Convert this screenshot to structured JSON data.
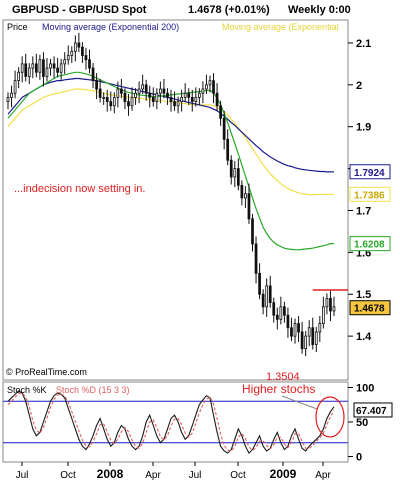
{
  "header": {
    "symbol": "GBPUSD - GBP/USD Spot",
    "price_change": "1.4678 (+0.01%)",
    "timeframe": "Weekly 0:00"
  },
  "main_panel": {
    "price_label": "Price",
    "ma200_legend": "Moving average (Exponential 200)",
    "ma_legend_2": "Moving average (Exponential",
    "annotation": "...indecision now setting in.",
    "low_label": "1.3504",
    "copyright": "© ProRealTime.com"
  },
  "stoch_panel": {
    "legend_k": "Stoch %K",
    "legend_d": "Stoch %D (15 3 3)",
    "annotation": "Higher stochs"
  },
  "colors": {
    "ma200": "#1a1a8c",
    "ma_yellow": "#f2e04a",
    "ma_green": "#2aa82a",
    "candle": "#111111",
    "resistance": "#e02020",
    "annotation_red": "#e02020",
    "current_box": "#f5c542",
    "stoch_k": "#1a1a1a",
    "stoch_d": "#e06060",
    "stoch_band": "#1a1acc"
  },
  "chart_data": [
    {
      "type": "candlestick",
      "title": "GBPUSD - GBP/USD Spot",
      "ylim": [
        1.3,
        2.15
      ],
      "yticks": [
        1.4,
        1.5,
        1.6,
        1.7,
        1.8,
        1.9,
        2.0,
        2.1
      ],
      "ytick_labels": [
        "1.4",
        "1.5",
        "1.6",
        "1.7",
        "1.8",
        "1.9",
        "2",
        "2.1"
      ],
      "xtick_labels": [
        "Jul",
        "Oct",
        "2008",
        "Apr",
        "Jul",
        "Oct",
        "2009",
        "Apr"
      ],
      "last_values": [
        {
          "name": "MA 200",
          "value": 1.7924
        },
        {
          "name": "MA yellow",
          "value": 1.7386
        },
        {
          "name": "MA green",
          "value": 1.6208
        },
        {
          "name": "Price",
          "value": 1.4678
        }
      ],
      "resistance_level": 1.51,
      "low": 1.3504,
      "close_series": [
        1.97,
        1.98,
        2.01,
        2.03,
        2.05,
        2.02,
        2.04,
        2.05,
        2.03,
        2.06,
        2.02,
        2.04,
        2.05,
        2.04,
        2.03,
        2.05,
        2.06,
        2.07,
        2.08,
        2.1,
        2.09,
        2.07,
        2.06,
        2.04,
        2.01,
        1.99,
        1.97,
        1.97,
        1.96,
        1.95,
        1.97,
        1.99,
        1.98,
        1.96,
        1.95,
        1.97,
        1.98,
        1.99,
        2.0,
        1.98,
        1.97,
        1.96,
        1.98,
        1.99,
        1.98,
        1.97,
        1.96,
        1.95,
        1.96,
        1.97,
        1.98,
        1.97,
        1.96,
        1.97,
        1.98,
        1.99,
        2.0,
        2.01,
        1.98,
        1.95,
        1.92,
        1.87,
        1.82,
        1.78,
        1.8,
        1.76,
        1.73,
        1.74,
        1.68,
        1.62,
        1.55,
        1.5,
        1.47,
        1.52,
        1.48,
        1.45,
        1.44,
        1.47,
        1.45,
        1.42,
        1.4,
        1.43,
        1.41,
        1.37,
        1.4,
        1.42,
        1.38,
        1.41,
        1.43,
        1.47,
        1.49,
        1.46,
        1.47
      ],
      "ma200_series": [
        1.93,
        1.94,
        1.95,
        1.96,
        1.97,
        1.975,
        1.98,
        1.985,
        1.99,
        1.995,
        2.0,
        2.003,
        2.006,
        2.008,
        2.01,
        2.01,
        2.012,
        2.013,
        2.014,
        2.015,
        2.015,
        2.014,
        2.013,
        2.012,
        2.011,
        2.01,
        2.008,
        2.006,
        2.004,
        2.002,
        2.0,
        1.998,
        1.996,
        1.994,
        1.992,
        1.99,
        1.988,
        1.986,
        1.984,
        1.982,
        1.98,
        1.978,
        1.976,
        1.974,
        1.972,
        1.97,
        1.968,
        1.966,
        1.964,
        1.962,
        1.96,
        1.958,
        1.956,
        1.954,
        1.952,
        1.95,
        1.948,
        1.946,
        1.942,
        1.938,
        1.932,
        1.925,
        1.918,
        1.91,
        1.903,
        1.895,
        1.887,
        1.879,
        1.871,
        1.863,
        1.855,
        1.848,
        1.84,
        1.834,
        1.828,
        1.823,
        1.818,
        1.814,
        1.81,
        1.807,
        1.805,
        1.802,
        1.8,
        1.798,
        1.797,
        1.796,
        1.795,
        1.794,
        1.793,
        1.793,
        1.792,
        1.792,
        1.7924
      ],
      "ma_yellow_series": [
        1.9,
        1.91,
        1.92,
        1.93,
        1.94,
        1.945,
        1.95,
        1.955,
        1.96,
        1.965,
        1.97,
        1.973,
        1.976,
        1.978,
        1.98,
        1.982,
        1.984,
        1.986,
        1.988,
        1.99,
        1.99,
        1.989,
        1.988,
        1.987,
        1.986,
        1.984,
        1.982,
        1.98,
        1.978,
        1.976,
        1.975,
        1.974,
        1.973,
        1.972,
        1.971,
        1.97,
        1.969,
        1.968,
        1.967,
        1.966,
        1.965,
        1.964,
        1.963,
        1.962,
        1.961,
        1.96,
        1.959,
        1.958,
        1.957,
        1.956,
        1.955,
        1.954,
        1.953,
        1.952,
        1.952,
        1.952,
        1.952,
        1.952,
        1.95,
        1.948,
        1.943,
        1.936,
        1.928,
        1.918,
        1.908,
        1.897,
        1.886,
        1.874,
        1.861,
        1.848,
        1.835,
        1.822,
        1.809,
        1.798,
        1.788,
        1.779,
        1.771,
        1.764,
        1.758,
        1.752,
        1.748,
        1.745,
        1.742,
        1.74,
        1.739,
        1.738,
        1.738,
        1.738,
        1.7386,
        1.7386,
        1.7386,
        1.7386,
        1.7386
      ],
      "ma_green_series": [
        1.92,
        1.93,
        1.94,
        1.95,
        1.96,
        1.97,
        1.98,
        1.985,
        1.99,
        1.995,
        2.0,
        2.005,
        2.01,
        2.015,
        2.02,
        2.022,
        2.024,
        2.026,
        2.028,
        2.03,
        2.03,
        2.028,
        2.026,
        2.024,
        2.02,
        2.016,
        2.012,
        2.008,
        2.004,
        2.0,
        1.996,
        1.992,
        1.988,
        1.985,
        1.982,
        1.98,
        1.978,
        1.976,
        1.975,
        1.974,
        1.973,
        1.972,
        1.972,
        1.973,
        1.974,
        1.975,
        1.976,
        1.977,
        1.978,
        1.979,
        1.98,
        1.981,
        1.982,
        1.983,
        1.984,
        1.985,
        1.986,
        1.987,
        1.98,
        1.968,
        1.952,
        1.932,
        1.91,
        1.885,
        1.86,
        1.835,
        1.808,
        1.782,
        1.756,
        1.73,
        1.705,
        1.682,
        1.66,
        1.645,
        1.633,
        1.624,
        1.618,
        1.614,
        1.61,
        1.608,
        1.607,
        1.606,
        1.606,
        1.607,
        1.608,
        1.609,
        1.61,
        1.612,
        1.614,
        1.616,
        1.618,
        1.6208,
        1.6208
      ]
    },
    {
      "type": "line",
      "title": "Stoch %K Stoch %D (15 3 3)",
      "ylim": [
        -5,
        105
      ],
      "yticks": [
        0,
        50,
        100
      ],
      "ytick_labels": [
        "0",
        "50",
        "100"
      ],
      "bands": [
        80,
        20
      ],
      "last_value": 67.407,
      "last_label": "67.407",
      "k_series": [
        80,
        85,
        90,
        95,
        92,
        80,
        60,
        40,
        30,
        35,
        50,
        65,
        80,
        88,
        92,
        90,
        85,
        70,
        55,
        40,
        25,
        15,
        10,
        18,
        30,
        45,
        55,
        40,
        25,
        15,
        20,
        35,
        45,
        40,
        25,
        15,
        10,
        15,
        30,
        50,
        60,
        45,
        30,
        20,
        25,
        40,
        55,
        60,
        50,
        35,
        25,
        30,
        45,
        60,
        75,
        82,
        88,
        85,
        60,
        35,
        15,
        8,
        5,
        10,
        25,
        40,
        30,
        15,
        5,
        10,
        20,
        30,
        15,
        8,
        12,
        25,
        35,
        20,
        10,
        15,
        30,
        40,
        25,
        12,
        8,
        15,
        20,
        25,
        30,
        40,
        55,
        65,
        72
      ],
      "d_series": [
        75,
        80,
        86,
        91,
        92,
        86,
        72,
        52,
        38,
        34,
        42,
        56,
        71,
        83,
        89,
        90,
        88,
        79,
        65,
        51,
        37,
        24,
        15,
        14,
        21,
        33,
        46,
        47,
        36,
        24,
        19,
        25,
        36,
        42,
        36,
        24,
        15,
        12,
        19,
        35,
        50,
        53,
        42,
        29,
        24,
        30,
        44,
        54,
        55,
        46,
        34,
        28,
        34,
        48,
        63,
        75,
        83,
        86,
        76,
        55,
        32,
        16,
        9,
        8,
        15,
        28,
        33,
        26,
        14,
        9,
        13,
        22,
        23,
        16,
        11,
        17,
        28,
        28,
        18,
        13,
        20,
        33,
        33,
        22,
        12,
        12,
        16,
        22,
        27,
        34,
        46,
        58,
        67
      ]
    }
  ]
}
